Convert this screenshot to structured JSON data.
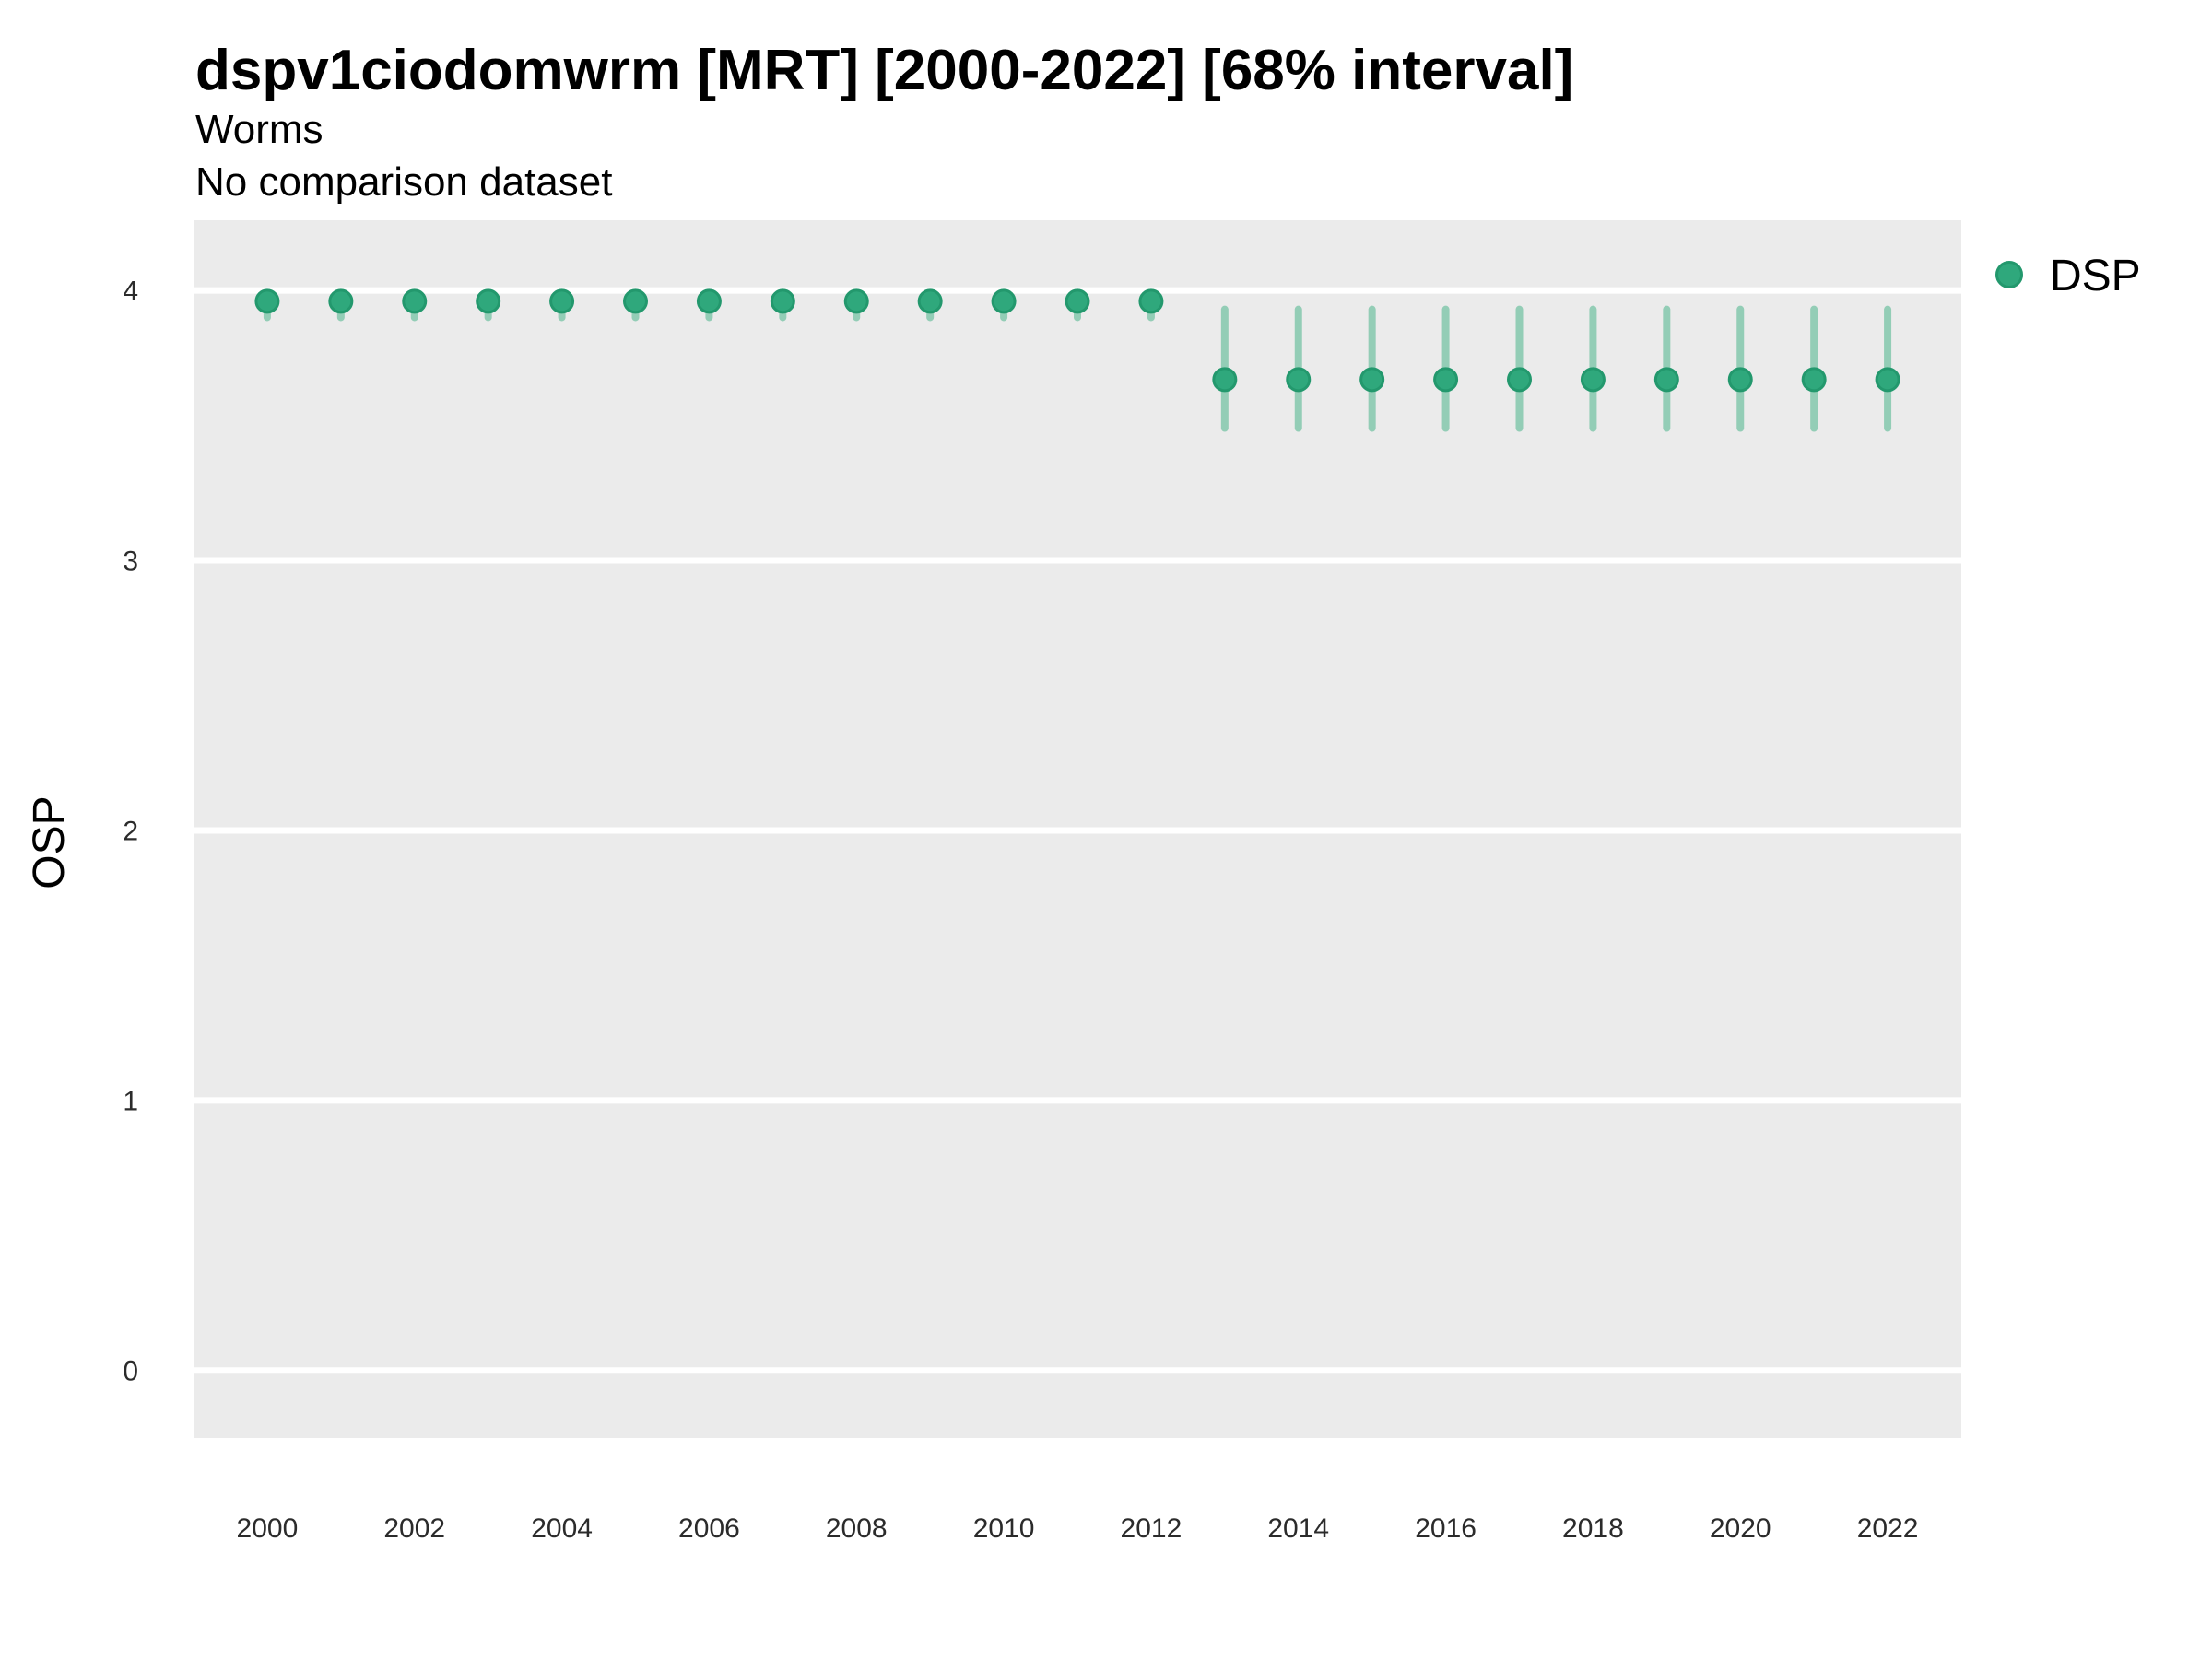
{
  "colors": {
    "point": "#2FA87C",
    "point_stroke": "#23986D",
    "interval": "#93CDB6",
    "panel_bg": "#EBEBEB",
    "gridline": "#FFFFFF",
    "tick_text": "#2B2B2B",
    "text": "#000000"
  },
  "chart_data": {
    "type": "scatter",
    "title": "dspv1ciodomwrm [MRT] [2000-2022] [68% interval]",
    "subtitle": "Worms",
    "note": "No comparison dataset",
    "xlabel": "",
    "ylabel": "OSP",
    "interval": "68%",
    "legend_position": "right-top-outside",
    "grid": "horizontal-major-only-white-on-grey",
    "x_ticks": [
      2000,
      2002,
      2004,
      2006,
      2008,
      2010,
      2012,
      2014,
      2016,
      2018,
      2020,
      2022
    ],
    "y_ticks": [
      4,
      3,
      2,
      1,
      0
    ],
    "xlim": [
      1999,
      2023
    ],
    "ylim": [
      -0.25,
      4.26
    ],
    "series": [
      {
        "name": "DSP",
        "marker": "circle",
        "points": [
          {
            "x": 2000,
            "y": 3.96,
            "lo": 3.9,
            "hi": 3.99
          },
          {
            "x": 2001,
            "y": 3.96,
            "lo": 3.9,
            "hi": 3.99
          },
          {
            "x": 2002,
            "y": 3.96,
            "lo": 3.9,
            "hi": 3.99
          },
          {
            "x": 2003,
            "y": 3.96,
            "lo": 3.9,
            "hi": 3.99
          },
          {
            "x": 2004,
            "y": 3.96,
            "lo": 3.9,
            "hi": 3.99
          },
          {
            "x": 2005,
            "y": 3.96,
            "lo": 3.9,
            "hi": 3.99
          },
          {
            "x": 2006,
            "y": 3.96,
            "lo": 3.9,
            "hi": 3.99
          },
          {
            "x": 2007,
            "y": 3.96,
            "lo": 3.9,
            "hi": 3.99
          },
          {
            "x": 2008,
            "y": 3.96,
            "lo": 3.9,
            "hi": 3.99
          },
          {
            "x": 2009,
            "y": 3.96,
            "lo": 3.9,
            "hi": 3.99
          },
          {
            "x": 2010,
            "y": 3.96,
            "lo": 3.9,
            "hi": 3.99
          },
          {
            "x": 2011,
            "y": 3.96,
            "lo": 3.9,
            "hi": 3.99
          },
          {
            "x": 2012,
            "y": 3.96,
            "lo": 3.9,
            "hi": 3.99
          },
          {
            "x": 2013,
            "y": 3.67,
            "lo": 3.49,
            "hi": 3.93
          },
          {
            "x": 2014,
            "y": 3.67,
            "lo": 3.49,
            "hi": 3.93
          },
          {
            "x": 2015,
            "y": 3.67,
            "lo": 3.49,
            "hi": 3.93
          },
          {
            "x": 2016,
            "y": 3.67,
            "lo": 3.49,
            "hi": 3.93
          },
          {
            "x": 2017,
            "y": 3.67,
            "lo": 3.49,
            "hi": 3.93
          },
          {
            "x": 2018,
            "y": 3.67,
            "lo": 3.49,
            "hi": 3.93
          },
          {
            "x": 2019,
            "y": 3.67,
            "lo": 3.49,
            "hi": 3.93
          },
          {
            "x": 2020,
            "y": 3.67,
            "lo": 3.49,
            "hi": 3.93
          },
          {
            "x": 2021,
            "y": 3.67,
            "lo": 3.49,
            "hi": 3.93
          },
          {
            "x": 2022,
            "y": 3.67,
            "lo": 3.49,
            "hi": 3.93
          }
        ]
      }
    ]
  }
}
